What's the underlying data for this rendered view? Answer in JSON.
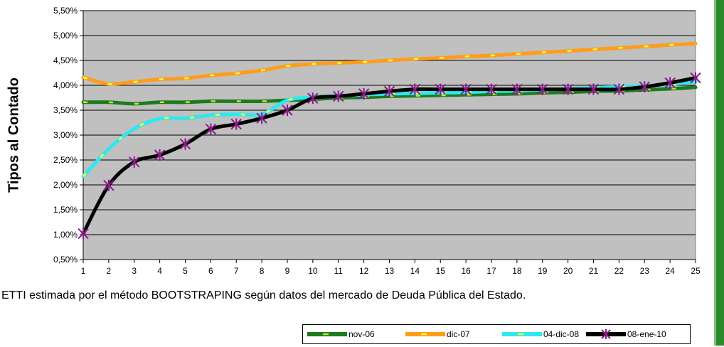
{
  "chart_data": {
    "type": "line",
    "title": "",
    "xlabel": "",
    "ylabel": "Tipos al Contado",
    "x": [
      1,
      2,
      3,
      4,
      5,
      6,
      7,
      8,
      9,
      10,
      11,
      12,
      13,
      14,
      15,
      16,
      17,
      18,
      19,
      20,
      21,
      22,
      23,
      24,
      25
    ],
    "ylim": [
      0.5,
      5.5
    ],
    "y_ticks": [
      "0,50%",
      "1,00%",
      "1,50%",
      "2,00%",
      "2,50%",
      "3,00%",
      "3,50%",
      "4,00%",
      "4,50%",
      "5,00%",
      "5,50%"
    ],
    "y_tick_values": [
      0.5,
      1.0,
      1.5,
      2.0,
      2.5,
      3.0,
      3.5,
      4.0,
      4.5,
      5.0,
      5.5
    ],
    "grid": true,
    "legend_position": "bottom-right",
    "series": [
      {
        "name": "nov-06",
        "color": "#1e7a1e",
        "dash_color": "#c8e03c",
        "values": [
          3.66,
          3.66,
          3.63,
          3.66,
          3.66,
          3.68,
          3.68,
          3.68,
          3.7,
          3.72,
          3.75,
          3.76,
          3.78,
          3.79,
          3.8,
          3.81,
          3.82,
          3.83,
          3.85,
          3.86,
          3.88,
          3.89,
          3.91,
          3.93,
          3.96
        ]
      },
      {
        "name": "dic-07",
        "color": "#ff9c1a",
        "dash_color": "#ffff33",
        "values": [
          4.16,
          4.03,
          4.07,
          4.12,
          4.14,
          4.2,
          4.24,
          4.3,
          4.39,
          4.43,
          4.45,
          4.47,
          4.5,
          4.53,
          4.55,
          4.58,
          4.6,
          4.63,
          4.66,
          4.69,
          4.72,
          4.75,
          4.78,
          4.81,
          4.84
        ]
      },
      {
        "name": "04-dic-08",
        "color": "#2ee8f0",
        "dash_color": "#ffff33",
        "values": [
          2.17,
          2.72,
          3.13,
          3.33,
          3.34,
          3.4,
          3.42,
          3.42,
          3.7,
          3.76,
          3.79,
          3.81,
          3.83,
          3.84,
          3.85,
          3.86,
          3.88,
          3.89,
          3.91,
          3.93,
          3.95,
          3.97,
          3.99,
          4.02,
          4.07
        ]
      },
      {
        "name": "08-ene-10",
        "color": "#000000",
        "marker_color": "#8b1a8b",
        "values": [
          1.02,
          1.99,
          2.46,
          2.6,
          2.82,
          3.12,
          3.22,
          3.34,
          3.5,
          3.74,
          3.78,
          3.83,
          3.88,
          3.92,
          3.92,
          3.92,
          3.92,
          3.92,
          3.92,
          3.92,
          3.92,
          3.92,
          3.97,
          4.05,
          4.15
        ]
      }
    ]
  },
  "caption": "ETTI estimada por el método BOOTSTRAPING según datos del mercado de Deuda Pública del Estado."
}
